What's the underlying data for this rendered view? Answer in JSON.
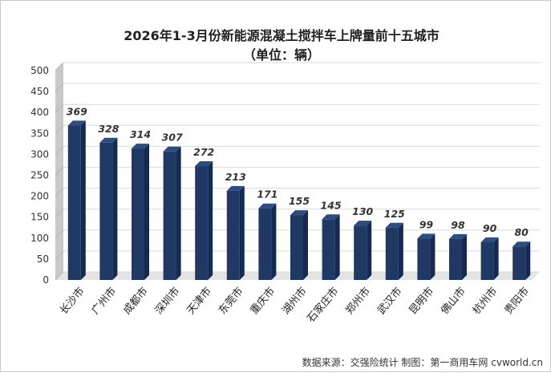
{
  "chart_data": {
    "type": "bar",
    "title": "2026年1-3月份新能源混凝土搅拌车上牌量前十五城市",
    "subtitle": "（单位：辆）",
    "categories": [
      "长沙市",
      "广州市",
      "成都市",
      "深圳市",
      "天津市",
      "东莞市",
      "重庆市",
      "湖州市",
      "石家庄市",
      "郑州市",
      "武汉市",
      "昆明市",
      "佛山市",
      "杭州市",
      "贵阳市"
    ],
    "values": [
      369,
      328,
      314,
      307,
      272,
      213,
      171,
      155,
      145,
      130,
      125,
      99,
      98,
      90,
      80
    ],
    "data_labels": [
      "369",
      "328",
      "314",
      "307",
      "272",
      "213",
      "171",
      "155",
      "145",
      "130",
      "125",
      "99",
      "98",
      "90",
      "80"
    ],
    "ylim": [
      0,
      500
    ],
    "yticks": [
      "0",
      "50",
      "100",
      "150",
      "200",
      "250",
      "300",
      "350",
      "400",
      "450",
      "500"
    ],
    "xlabel": "",
    "ylabel": "",
    "grid": true,
    "legend": "none",
    "colors": {
      "bar_front": "#1f3864",
      "bar_side": "#152a4d",
      "bar_top": "#2c4d80",
      "wall": "#c9c9c9",
      "grid": "#d9d9d9"
    }
  },
  "source": "数据来源：交强险统计  制图：第一商用车网 cvworld.cn"
}
